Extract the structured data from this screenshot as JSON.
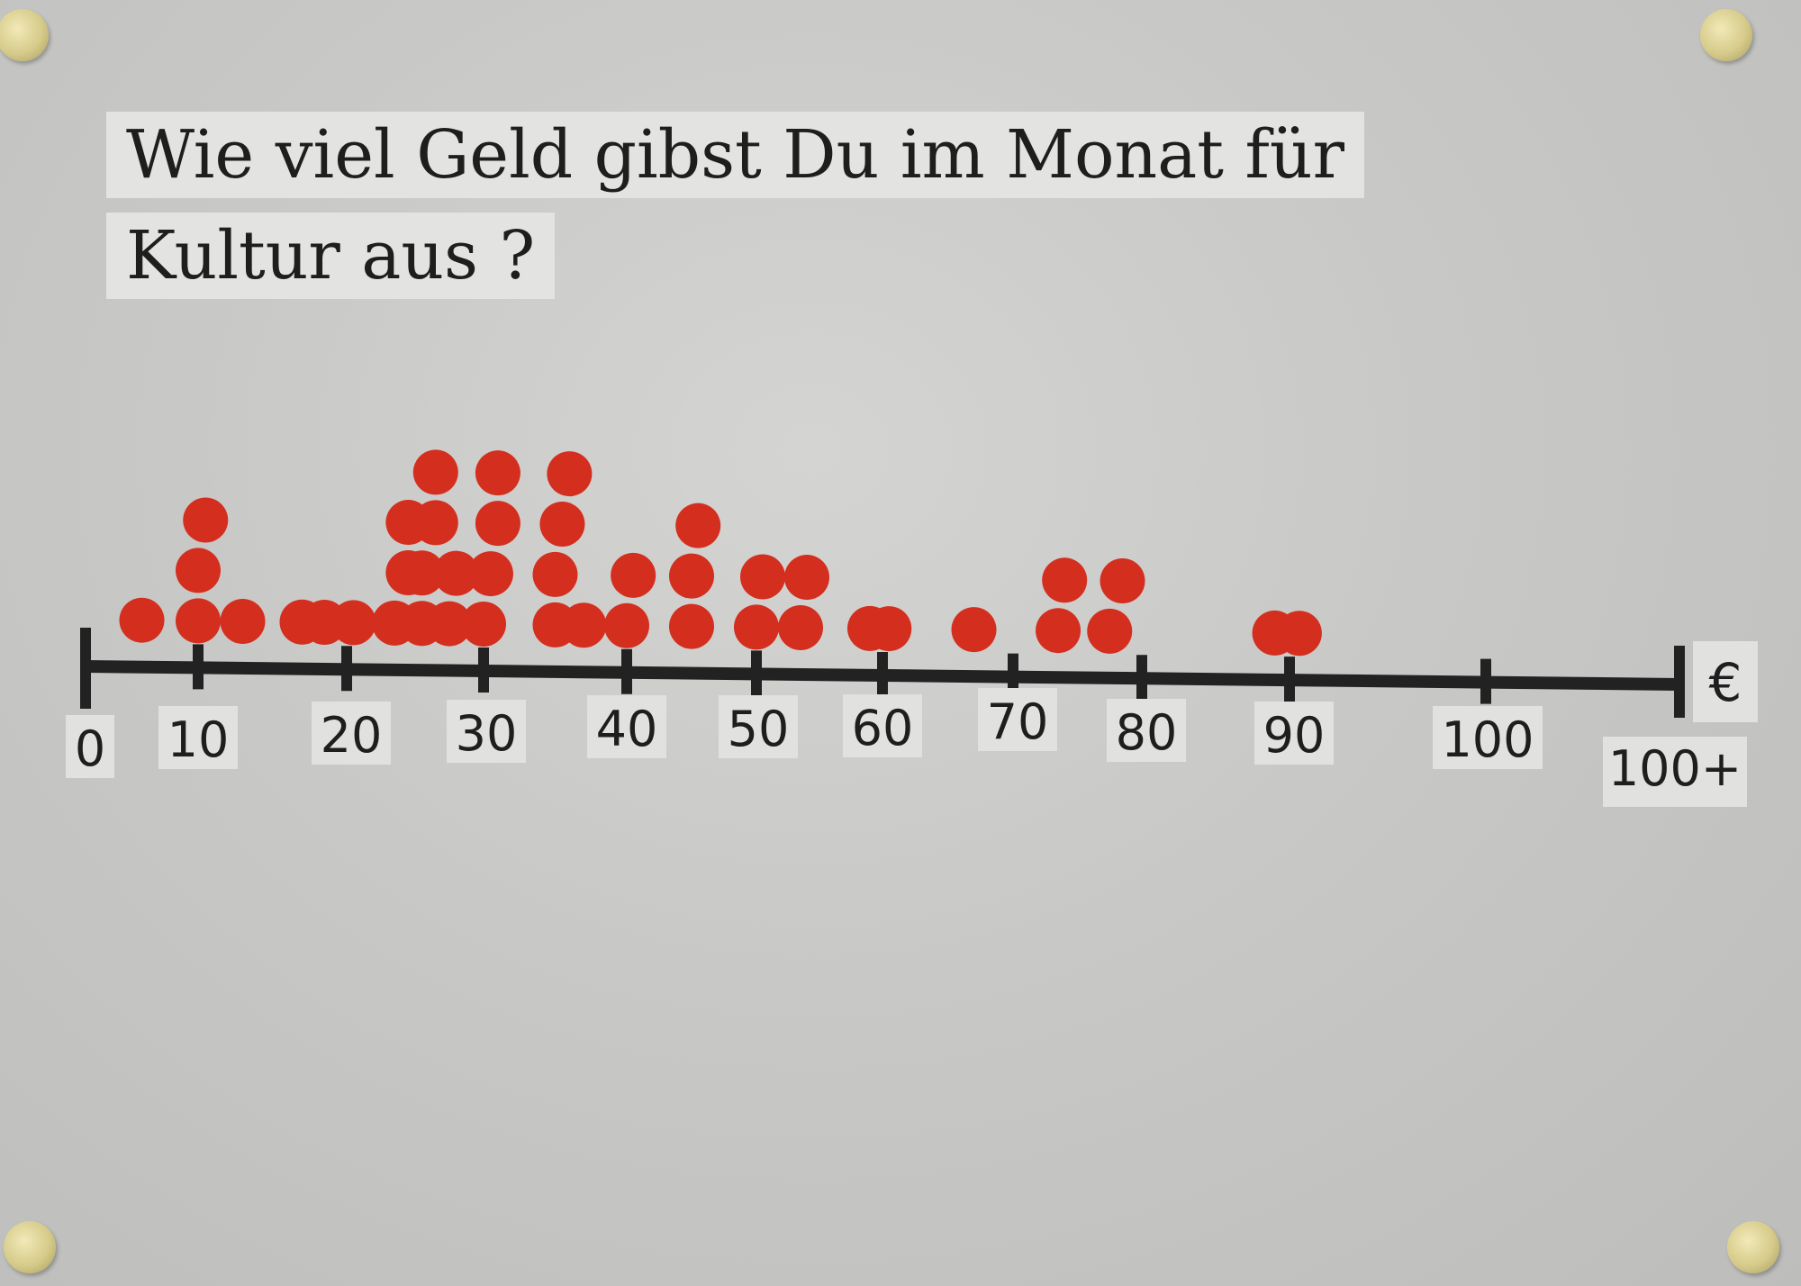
{
  "chart_data": {
    "type": "scatter",
    "title": "Wie viel Geld gibst  Du im Monat für",
    "title_line2": "Kultur aus ?",
    "xlabel": "",
    "ylabel": "",
    "unit": "€",
    "overflow_label": "100+",
    "xlim": [
      0,
      110
    ],
    "grid": false,
    "ticks": [
      {
        "value": 0,
        "label": "0"
      },
      {
        "value": 10,
        "label": "10"
      },
      {
        "value": 20,
        "label": "20"
      },
      {
        "value": 30,
        "label": "30"
      },
      {
        "value": 40,
        "label": "40"
      },
      {
        "value": 50,
        "label": "50"
      },
      {
        "value": 60,
        "label": "60"
      },
      {
        "value": 70,
        "label": "70"
      },
      {
        "value": 80,
        "label": "80"
      },
      {
        "value": 90,
        "label": "90"
      },
      {
        "value": 100,
        "label": "100"
      }
    ],
    "marker_color": "#d42e1e",
    "points": [
      {
        "x": 5
      },
      {
        "x": 10
      },
      {
        "x": 10
      },
      {
        "x": 10.5
      },
      {
        "x": 13
      },
      {
        "x": 17
      },
      {
        "x": 18.5
      },
      {
        "x": 20.5
      },
      {
        "x": 23.5
      },
      {
        "x": 24.5
      },
      {
        "x": 24.5
      },
      {
        "x": 25.5
      },
      {
        "x": 25.5
      },
      {
        "x": 26.5
      },
      {
        "x": 26.5
      },
      {
        "x": 27.5
      },
      {
        "x": 28
      },
      {
        "x": 30
      },
      {
        "x": 30.5
      },
      {
        "x": 31
      },
      {
        "x": 31
      },
      {
        "x": 35
      },
      {
        "x": 35
      },
      {
        "x": 35.5
      },
      {
        "x": 36
      },
      {
        "x": 37
      },
      {
        "x": 40
      },
      {
        "x": 40.5
      },
      {
        "x": 45
      },
      {
        "x": 45
      },
      {
        "x": 45.5
      },
      {
        "x": 50
      },
      {
        "x": 50.5
      },
      {
        "x": 53.5
      },
      {
        "x": 54
      },
      {
        "x": 59
      },
      {
        "x": 60.5
      },
      {
        "x": 67
      },
      {
        "x": 73.5
      },
      {
        "x": 74
      },
      {
        "x": 77.5
      },
      {
        "x": 78.5
      },
      {
        "x": 89
      },
      {
        "x": 90.5
      }
    ]
  }
}
